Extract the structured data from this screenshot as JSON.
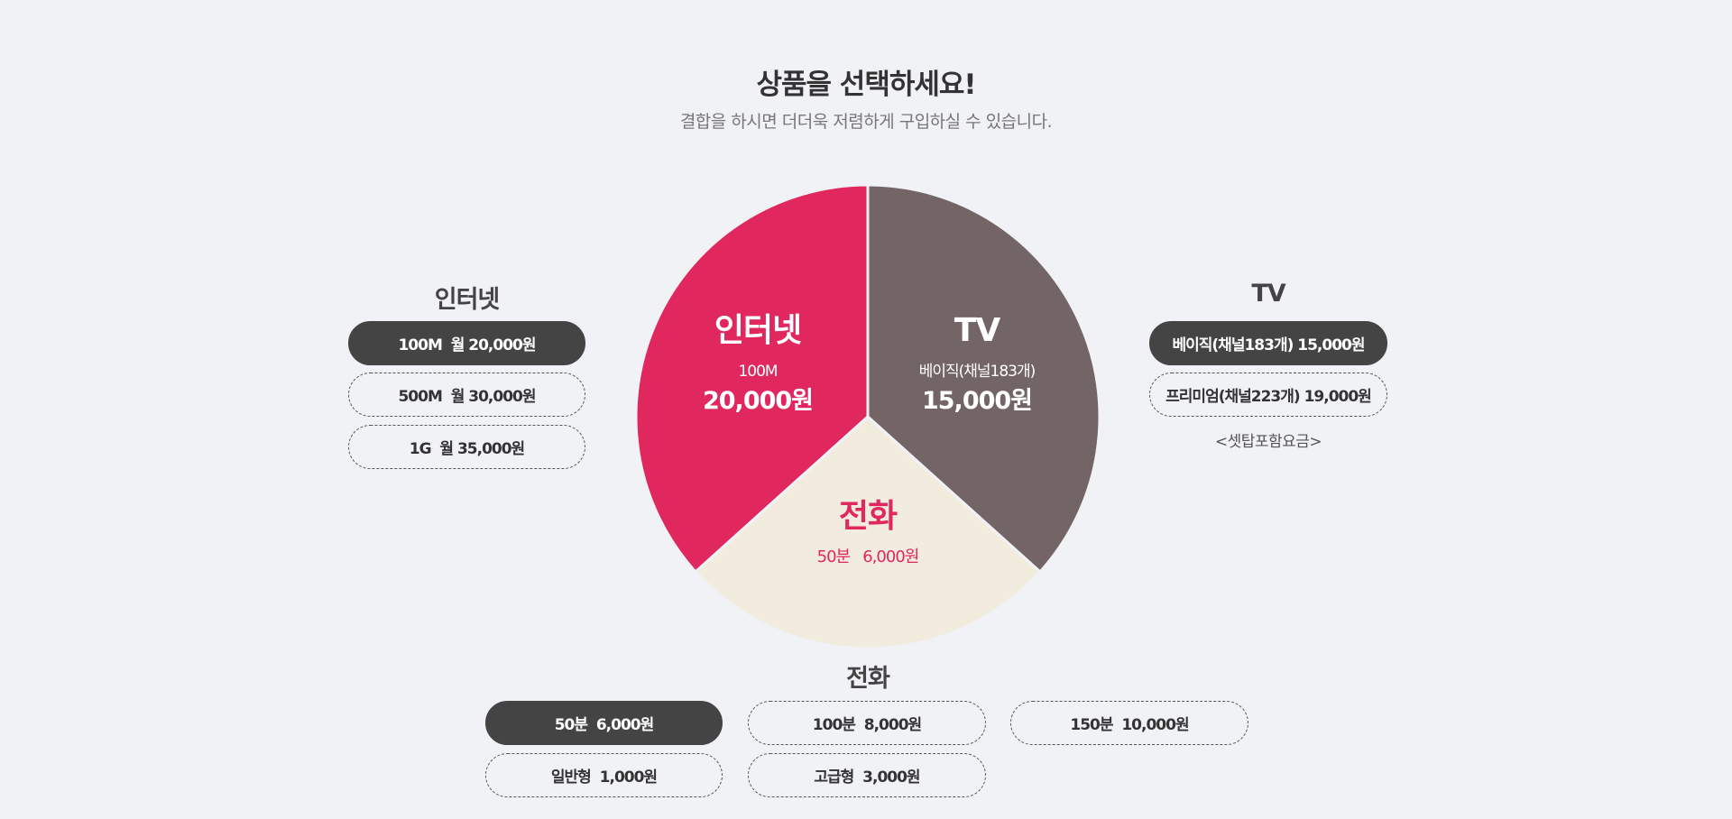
{
  "header": {
    "title": "상품을 선택하세요!",
    "subtitle": "결합을 하시면 더더욱 저렴하게 구입하실 수 있습니다."
  },
  "pie": {
    "internet": {
      "name": "인터넷",
      "spec": "100M",
      "price": "20,000원",
      "color": "#e0275e",
      "text_color": "#ffffff"
    },
    "tv": {
      "name": "TV",
      "spec": "베이직(채널183개)",
      "price": "15,000원",
      "color": "#736466",
      "text_color": "#ffffff"
    },
    "phone": {
      "name": "전화",
      "spec": "50분   6,000원",
      "color": "#f2ecdf",
      "text_color": "#e0275e"
    }
  },
  "internet": {
    "title": "인터넷",
    "options": [
      {
        "label": "100M  월 20,000원",
        "selected": true
      },
      {
        "label": "500M  월 30,000원",
        "selected": false
      },
      {
        "label": "1G  월 35,000원",
        "selected": false
      }
    ]
  },
  "tv": {
    "title": "TV",
    "options": [
      {
        "label": "베이직(채널183개) 15,000원",
        "selected": true
      },
      {
        "label": "프리미엄(채널223개) 19,000원",
        "selected": false
      }
    ],
    "note": "<셋탑포함요금>"
  },
  "phone": {
    "title": "전화",
    "options": [
      {
        "label": "50분  6,000원",
        "selected": true
      },
      {
        "label": "100분  8,000원",
        "selected": false
      },
      {
        "label": "150분  10,000원",
        "selected": false
      },
      {
        "label": "일반형  1,000원",
        "selected": false
      },
      {
        "label": "고급형  3,000원",
        "selected": false
      }
    ]
  }
}
